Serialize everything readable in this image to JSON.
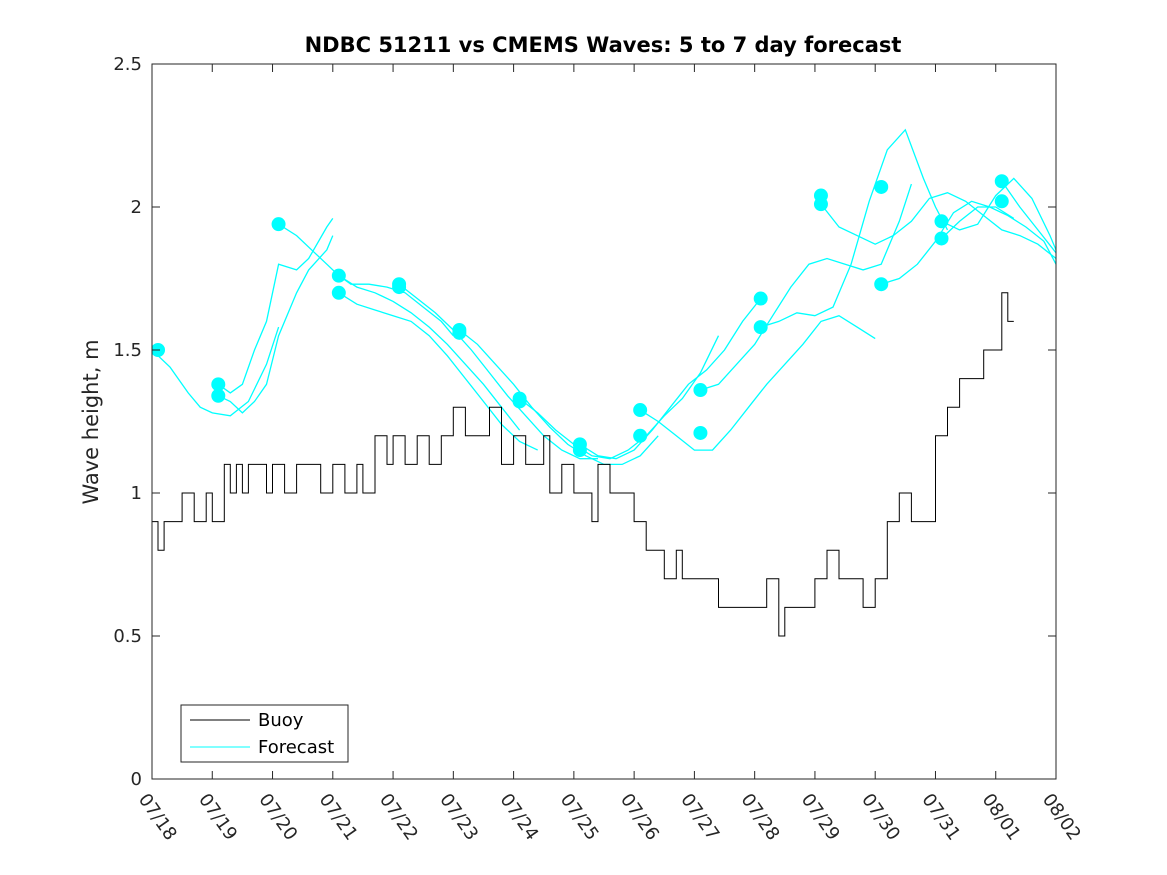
{
  "chart_data": {
    "type": "line",
    "title": "NDBC 51211 vs CMEMS Waves: 5 to 7 day forecast",
    "xlabel": "",
    "ylabel": "Wave height, m",
    "ylim": [
      0,
      2.5
    ],
    "xlim": [
      "07/18",
      "08/02"
    ],
    "x_ticks": [
      "07/18",
      "07/19",
      "07/20",
      "07/21",
      "07/22",
      "07/23",
      "07/24",
      "07/25",
      "07/26",
      "07/27",
      "07/28",
      "07/29",
      "07/30",
      "07/31",
      "08/01",
      "08/02"
    ],
    "y_ticks": [
      "0",
      "0.5",
      "1",
      "1.5",
      "2",
      "2.5"
    ],
    "grid": false,
    "legend": {
      "placement": "bottom-left",
      "entries": [
        "Buoy",
        "Forecast"
      ]
    },
    "colors": {
      "buoy": "#000000",
      "forecast": "#00ffff"
    },
    "series": [
      {
        "name": "Buoy",
        "x_days": [
          0,
          0.1,
          0.2,
          0.4,
          0.5,
          0.7,
          0.9,
          1.0,
          1.2,
          1.3,
          1.4,
          1.5,
          1.6,
          1.8,
          1.9,
          2.0,
          2.2,
          2.4,
          2.6,
          2.8,
          3.0,
          3.2,
          3.4,
          3.5,
          3.7,
          3.9,
          4.0,
          4.2,
          4.4,
          4.6,
          4.8,
          5.0,
          5.2,
          5.4,
          5.6,
          5.8,
          6.0,
          6.2,
          6.4,
          6.5,
          6.6,
          6.8,
          7.0,
          7.2,
          7.3,
          7.4,
          7.6,
          7.8,
          8.0,
          8.2,
          8.4,
          8.5,
          8.7,
          8.8,
          9.0,
          9.2,
          9.4,
          9.6,
          9.8,
          10.0,
          10.2,
          10.4,
          10.5,
          10.6,
          10.8,
          11.0,
          11.2,
          11.4,
          11.6,
          11.8,
          12.0,
          12.2,
          12.4,
          12.6,
          12.8,
          13.0,
          13.2,
          13.4,
          13.6,
          13.8,
          14.0,
          14.1,
          14.2,
          14.3
        ],
        "values": [
          0.9,
          0.8,
          0.9,
          0.9,
          1.0,
          0.9,
          1.0,
          0.9,
          1.1,
          1.0,
          1.1,
          1.0,
          1.1,
          1.1,
          1.0,
          1.1,
          1.0,
          1.1,
          1.1,
          1.0,
          1.1,
          1.0,
          1.1,
          1.0,
          1.2,
          1.1,
          1.2,
          1.1,
          1.2,
          1.1,
          1.2,
          1.3,
          1.2,
          1.2,
          1.3,
          1.1,
          1.2,
          1.1,
          1.1,
          1.2,
          1.0,
          1.1,
          1.0,
          1.0,
          0.9,
          1.1,
          1.0,
          1.0,
          0.9,
          0.8,
          0.8,
          0.7,
          0.8,
          0.7,
          0.7,
          0.7,
          0.6,
          0.6,
          0.6,
          0.6,
          0.7,
          0.5,
          0.6,
          0.6,
          0.6,
          0.7,
          0.8,
          0.7,
          0.7,
          0.6,
          0.7,
          0.9,
          1.0,
          0.9,
          0.9,
          1.2,
          1.3,
          1.4,
          1.4,
          1.5,
          1.5,
          1.7,
          1.6,
          1.6
        ]
      },
      {
        "name": "Forecast",
        "lines": [
          {
            "x_days": [
              0.0,
              0.3,
              0.6,
              0.8,
              1.0,
              1.3,
              1.6,
              1.9,
              2.1
            ],
            "values": [
              1.5,
              1.44,
              1.35,
              1.3,
              1.28,
              1.27,
              1.32,
              1.45,
              1.58
            ]
          },
          {
            "x_days": [
              1.1,
              1.3,
              1.5,
              1.7,
              1.9,
              2.1,
              2.4,
              2.6,
              2.9,
              3.0
            ],
            "values": [
              1.38,
              1.35,
              1.38,
              1.5,
              1.6,
              1.8,
              1.78,
              1.82,
              1.93,
              1.96
            ]
          },
          {
            "x_days": [
              1.1,
              1.3,
              1.5,
              1.7,
              1.9,
              2.1,
              2.4,
              2.6,
              2.9,
              3.0
            ],
            "values": [
              1.34,
              1.32,
              1.28,
              1.32,
              1.38,
              1.55,
              1.7,
              1.78,
              1.85,
              1.9
            ]
          },
          {
            "x_days": [
              2.1,
              2.4,
              2.7,
              2.9,
              3.1,
              3.3,
              3.6,
              3.9,
              4.2,
              4.5,
              4.8,
              5.0
            ],
            "values": [
              1.94,
              1.9,
              1.84,
              1.8,
              1.76,
              1.73,
              1.73,
              1.72,
              1.7,
              1.65,
              1.6,
              1.55
            ]
          },
          {
            "x_days": [
              3.1,
              3.4,
              3.7,
              4.0,
              4.3,
              4.6,
              4.9,
              5.2,
              5.5,
              5.8,
              6.1
            ],
            "values": [
              1.76,
              1.72,
              1.7,
              1.67,
              1.63,
              1.58,
              1.52,
              1.45,
              1.38,
              1.3,
              1.22
            ]
          },
          {
            "x_days": [
              3.1,
              3.4,
              3.7,
              4.0,
              4.3,
              4.6,
              4.9,
              5.2,
              5.5,
              5.8,
              6.1,
              6.4
            ],
            "values": [
              1.7,
              1.66,
              1.64,
              1.62,
              1.6,
              1.55,
              1.48,
              1.4,
              1.32,
              1.24,
              1.18,
              1.15
            ]
          },
          {
            "x_days": [
              4.1,
              4.4,
              4.7,
              5.0,
              5.3,
              5.6,
              5.9,
              6.2,
              6.5,
              6.8,
              7.1,
              7.4
            ],
            "values": [
              1.73,
              1.68,
              1.63,
              1.57,
              1.5,
              1.42,
              1.34,
              1.27,
              1.2,
              1.15,
              1.12,
              1.12
            ]
          },
          {
            "x_days": [
              5.1,
              5.4,
              5.7,
              6.0,
              6.3,
              6.6,
              6.9,
              7.2,
              7.5,
              7.8,
              8.1,
              8.4
            ],
            "values": [
              1.57,
              1.52,
              1.45,
              1.38,
              1.3,
              1.23,
              1.17,
              1.13,
              1.1,
              1.1,
              1.13,
              1.2
            ]
          },
          {
            "x_days": [
              6.1,
              6.4,
              6.7,
              7.0,
              7.3,
              7.6,
              7.9,
              8.2,
              8.5,
              8.8,
              9.1,
              9.4
            ],
            "values": [
              1.33,
              1.28,
              1.22,
              1.17,
              1.13,
              1.12,
              1.15,
              1.2,
              1.27,
              1.33,
              1.42,
              1.55
            ]
          },
          {
            "x_days": [
              7.1,
              7.4,
              7.7,
              8.0,
              8.3,
              8.6,
              8.9,
              9.2,
              9.5,
              9.8,
              10.1
            ],
            "values": [
              1.17,
              1.13,
              1.12,
              1.15,
              1.22,
              1.3,
              1.38,
              1.43,
              1.5,
              1.6,
              1.68
            ]
          },
          {
            "x_days": [
              8.1,
              8.4,
              8.7,
              9.0,
              9.3,
              9.6,
              9.9,
              10.2,
              10.5,
              10.8,
              11.1,
              11.4,
              11.7,
              12.0
            ],
            "values": [
              1.29,
              1.25,
              1.2,
              1.15,
              1.15,
              1.22,
              1.3,
              1.38,
              1.45,
              1.52,
              1.6,
              1.62,
              1.58,
              1.54
            ]
          },
          {
            "x_days": [
              9.1,
              9.4,
              9.7,
              10.0,
              10.3,
              10.6,
              10.9,
              11.2,
              11.5,
              11.8,
              12.1,
              12.4,
              12.6
            ],
            "values": [
              1.36,
              1.38,
              1.45,
              1.52,
              1.62,
              1.72,
              1.8,
              1.82,
              1.8,
              1.78,
              1.8,
              1.95,
              2.08
            ]
          },
          {
            "x_days": [
              10.1,
              10.4,
              10.7,
              11.0,
              11.3,
              11.6,
              11.9,
              12.2,
              12.5,
              12.8,
              13.0,
              13.2
            ],
            "values": [
              1.58,
              1.6,
              1.63,
              1.62,
              1.65,
              1.8,
              2.02,
              2.2,
              2.27,
              2.1,
              2.0,
              1.92
            ]
          },
          {
            "x_days": [
              11.1,
              11.4,
              11.7,
              12.0,
              12.3,
              12.6,
              12.9,
              13.2,
              13.5,
              13.8,
              14.1,
              14.4,
              14.7,
              15.0
            ],
            "values": [
              2.01,
              1.93,
              1.9,
              1.87,
              1.9,
              1.95,
              2.03,
              2.05,
              2.02,
              1.97,
              1.92,
              1.9,
              1.87,
              1.82
            ]
          },
          {
            "x_days": [
              12.1,
              12.4,
              12.7,
              13.0,
              13.3,
              13.6,
              13.9,
              14.2,
              14.5,
              14.8,
              15.0
            ],
            "values": [
              1.73,
              1.75,
              1.8,
              1.88,
              1.98,
              2.02,
              2.0,
              1.97,
              1.93,
              1.88,
              1.8
            ]
          },
          {
            "x_days": [
              13.1,
              13.4,
              13.7,
              14.0,
              14.3,
              14.6,
              14.9,
              15.0
            ],
            "values": [
              1.95,
              1.92,
              1.94,
              2.04,
              2.1,
              2.03,
              1.9,
              1.85
            ]
          },
          {
            "x_days": [
              14.1,
              14.4,
              14.7,
              15.0
            ],
            "values": [
              2.09,
              2.0,
              1.92,
              1.84
            ]
          },
          {
            "x_days": [
              13.1,
              13.4,
              13.7,
              14.0,
              14.3
            ],
            "values": [
              1.89,
              1.95,
              2.0,
              2.0,
              1.96
            ]
          }
        ],
        "markers": [
          {
            "x_day": 0.1,
            "value": 1.5
          },
          {
            "x_day": 1.1,
            "value": 1.38
          },
          {
            "x_day": 1.1,
            "value": 1.34
          },
          {
            "x_day": 2.1,
            "value": 1.94
          },
          {
            "x_day": 3.1,
            "value": 1.76
          },
          {
            "x_day": 3.1,
            "value": 1.7
          },
          {
            "x_day": 4.1,
            "value": 1.73
          },
          {
            "x_day": 4.1,
            "value": 1.72
          },
          {
            "x_day": 5.1,
            "value": 1.57
          },
          {
            "x_day": 5.1,
            "value": 1.56
          },
          {
            "x_day": 6.1,
            "value": 1.33
          },
          {
            "x_day": 6.1,
            "value": 1.32
          },
          {
            "x_day": 7.1,
            "value": 1.17
          },
          {
            "x_day": 7.1,
            "value": 1.15
          },
          {
            "x_day": 8.1,
            "value": 1.29
          },
          {
            "x_day": 8.1,
            "value": 1.2
          },
          {
            "x_day": 9.1,
            "value": 1.36
          },
          {
            "x_day": 9.1,
            "value": 1.21
          },
          {
            "x_day": 10.1,
            "value": 1.68
          },
          {
            "x_day": 10.1,
            "value": 1.58
          },
          {
            "x_day": 11.1,
            "value": 2.04
          },
          {
            "x_day": 11.1,
            "value": 2.01
          },
          {
            "x_day": 12.1,
            "value": 2.07
          },
          {
            "x_day": 12.1,
            "value": 1.73
          },
          {
            "x_day": 13.1,
            "value": 1.95
          },
          {
            "x_day": 13.1,
            "value": 1.89
          },
          {
            "x_day": 14.1,
            "value": 2.09
          },
          {
            "x_day": 14.1,
            "value": 2.02
          }
        ]
      }
    ]
  }
}
